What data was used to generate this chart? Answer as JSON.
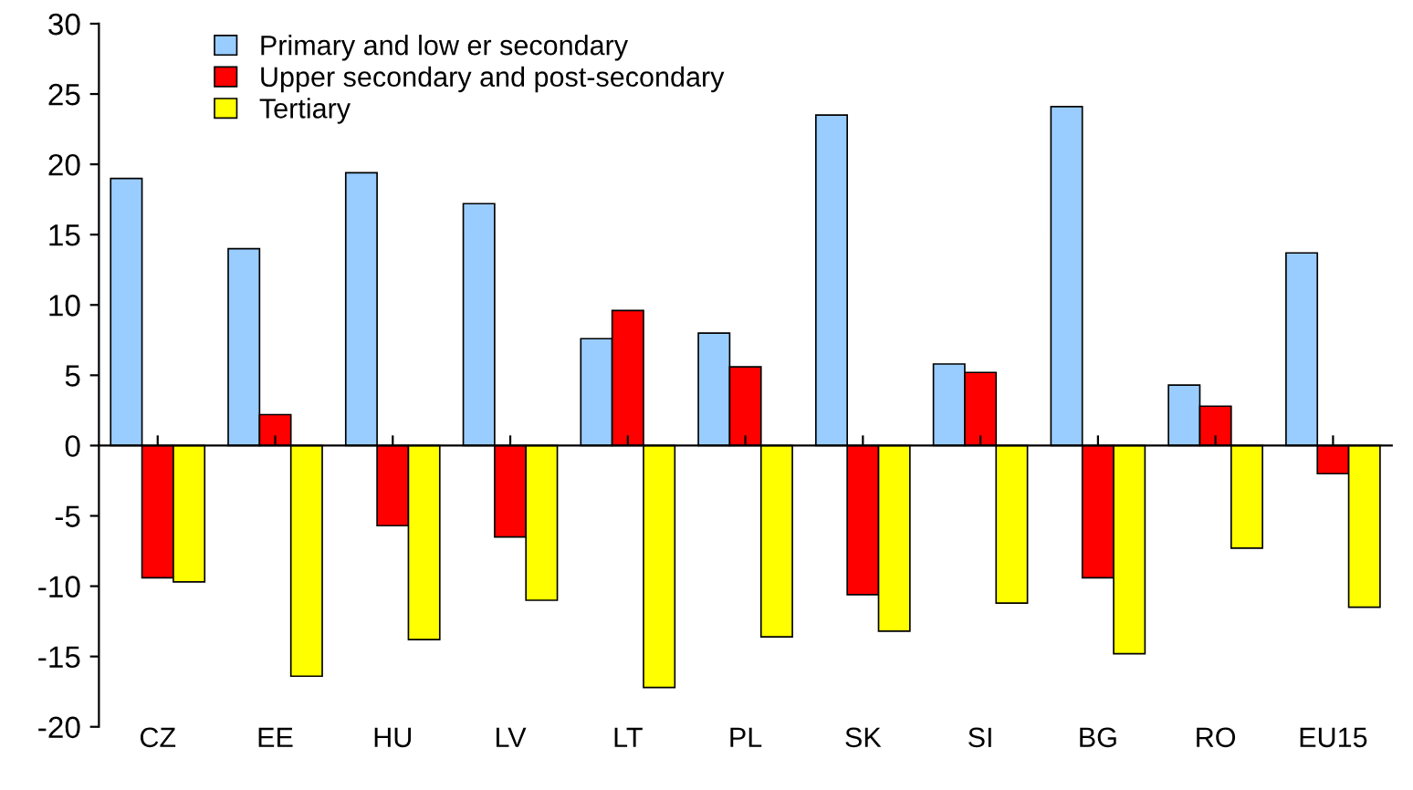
{
  "chart_data": {
    "type": "bar",
    "categories": [
      "CZ",
      "EE",
      "HU",
      "LV",
      "LT",
      "PL",
      "SK",
      "SI",
      "BG",
      "RO",
      "EU15"
    ],
    "series": [
      {
        "name": "Primary and low er secondary",
        "color": "#99ccff",
        "values": [
          19.0,
          14.0,
          19.4,
          17.2,
          7.6,
          8.0,
          23.5,
          5.8,
          24.1,
          4.3,
          13.7
        ]
      },
      {
        "name": "Upper secondary and post-secondary",
        "color": "#ff0000",
        "values": [
          -9.4,
          2.2,
          -5.7,
          -6.5,
          9.6,
          5.6,
          -10.6,
          5.2,
          -9.4,
          2.8,
          -2.0
        ]
      },
      {
        "name": "Tertiary",
        "color": "#ffff00",
        "values": [
          -9.7,
          -16.4,
          -13.8,
          -11.0,
          -17.2,
          -13.6,
          -13.2,
          -11.2,
          -14.8,
          -7.3,
          -11.5
        ]
      }
    ],
    "ylim": [
      -20,
      30
    ],
    "yticks": [
      -20,
      -15,
      -10,
      -5,
      0,
      5,
      10,
      15,
      20,
      25,
      30
    ],
    "legend": "top left"
  }
}
